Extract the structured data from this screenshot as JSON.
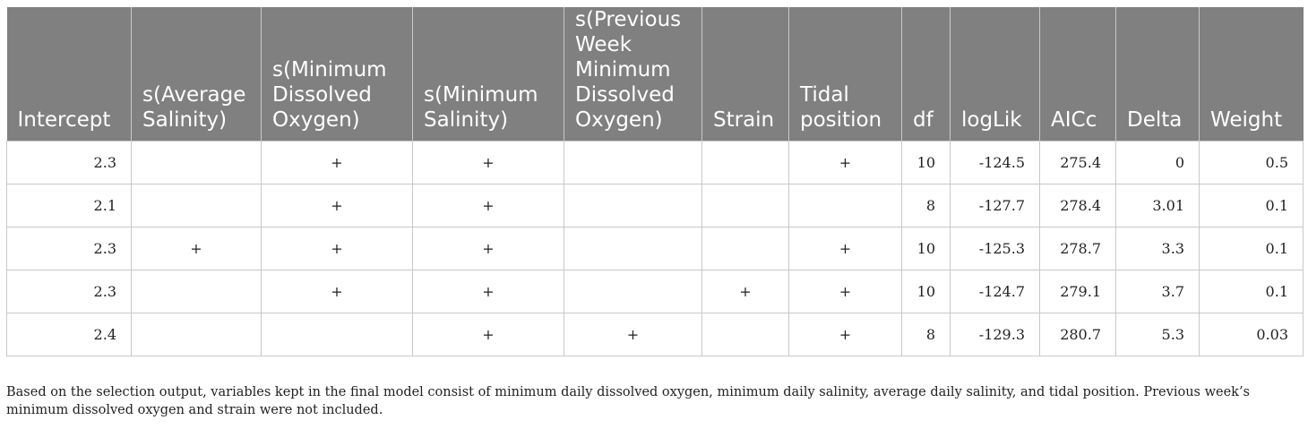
{
  "table": {
    "headers": [
      "Intercept",
      "s(Average Salinity)",
      "s(Minimum Dissolved Oxygen)",
      "s(Minimum Salinity)",
      "s(Previous Week Minimum Dissolved Oxygen)",
      "Strain",
      "Tidal position",
      "df",
      "logLik",
      "AICc",
      "Delta",
      "Weight"
    ],
    "rows": [
      [
        "2.3",
        "",
        "+",
        "+",
        "",
        "",
        "+",
        "10",
        "-124.5",
        "275.4",
        "0",
        "0.5"
      ],
      [
        "2.1",
        "",
        "+",
        "+",
        "",
        "",
        "",
        "8",
        "-127.7",
        "278.4",
        "3.01",
        "0.1"
      ],
      [
        "2.3",
        "+",
        "+",
        "+",
        "",
        "",
        "+",
        "10",
        "-125.3",
        "278.7",
        "3.3",
        "0.1"
      ],
      [
        "2.3",
        "",
        "+",
        "+",
        "",
        "+",
        "+",
        "10",
        "-124.7",
        "279.1",
        "3.7",
        "0.1"
      ],
      [
        "2.4",
        "",
        "",
        "+",
        "+",
        "",
        "+",
        "8",
        "-129.3",
        "280.7",
        "5.3",
        "0.03"
      ]
    ]
  },
  "footnote": "Based on the selection output, variables kept in the final model consist of minimum daily dissolved oxygen, minimum daily salinity, average daily salinity, and tidal position. Previous week’s minimum dissolved oxygen and strain were not included."
}
